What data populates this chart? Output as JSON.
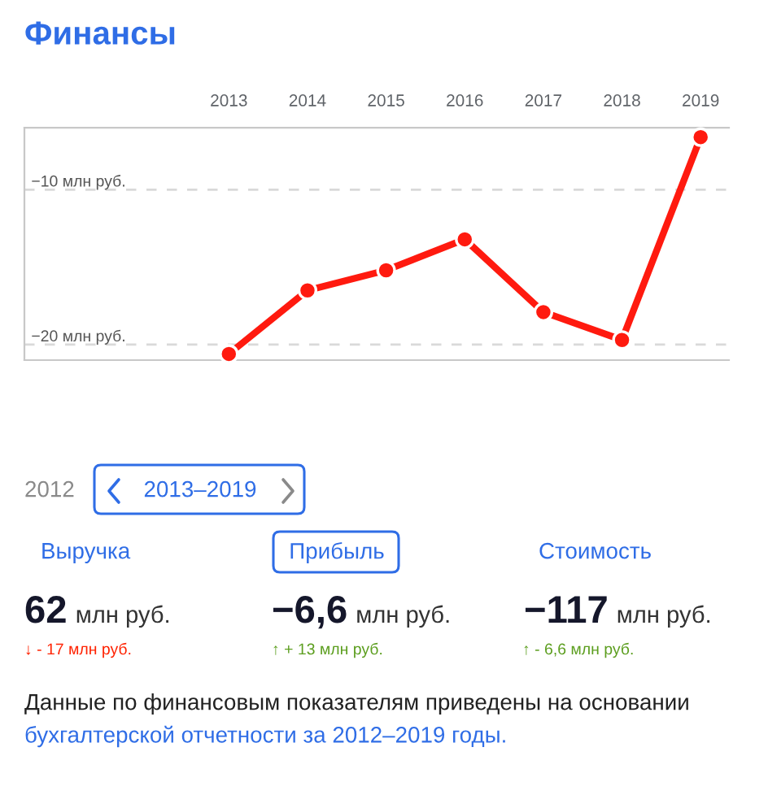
{
  "chart_data": {
    "type": "line",
    "title": "Финансы",
    "categories": [
      "2013",
      "2014",
      "2015",
      "2016",
      "2017",
      "2018",
      "2019"
    ],
    "series": [
      {
        "color": "#ff1a0f",
        "values": [
          -20.6,
          -16.5,
          -15.2,
          -13.2,
          -17.9,
          -19.7,
          -6.6
        ]
      }
    ],
    "ylim": [
      -21,
      -6
    ],
    "yticks": [
      {
        "value": -10,
        "label": "−10 млн руб."
      },
      {
        "value": -20,
        "label": "−20 млн руб."
      }
    ],
    "grid": "y",
    "marker": "circle",
    "line_style": "solid",
    "annotations": [
      "2012",
      "2013–2019",
      "Выручка",
      "Прибыль",
      "Стоимость",
      "62",
      "млн руб.",
      "−6,6",
      "млн руб.",
      "−117",
      "млн руб.",
      "↓ - 17 млн руб.",
      "↑ + 13 млн руб.",
      "↑ - 6,6 млн руб.",
      "Данные по финансовым показателям приведены на основании",
      "бухгалтерской отчетности за 2012–2019 годы."
    ]
  }
}
